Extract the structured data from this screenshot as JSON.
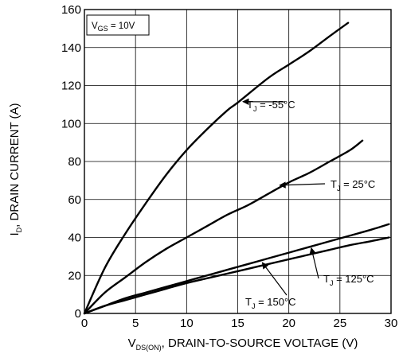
{
  "chart_data": {
    "type": "line",
    "title": "",
    "xlabel": {
      "pre": "V",
      "sub": "DS(ON)",
      "post": ", DRAIN-TO-SOURCE VOLTAGE (V)"
    },
    "ylabel": {
      "pre": "I",
      "sub": "D",
      "post": ", DRAIN CURRENT (A)"
    },
    "xlim": [
      0,
      30
    ],
    "ylim": [
      0,
      160
    ],
    "xticks": [
      0,
      5,
      10,
      15,
      20,
      25,
      30
    ],
    "yticks": [
      0,
      20,
      40,
      60,
      80,
      100,
      120,
      140,
      160
    ],
    "grid": true,
    "condition": {
      "pre": "V",
      "sub": "GS",
      "post": " = 10V"
    },
    "series": [
      {
        "label": {
          "pre": "T",
          "sub": "J",
          "post": " = -55°C"
        },
        "x": [
          0,
          2,
          4,
          6,
          8,
          10,
          12,
          14,
          15,
          18,
          20,
          22,
          24,
          25.8
        ],
        "y": [
          0,
          24,
          42,
          58,
          73,
          86,
          97,
          107,
          111,
          124,
          131,
          138,
          146,
          153
        ]
      },
      {
        "label": {
          "pre": "T",
          "sub": "J",
          "post": " = 25°C"
        },
        "x": [
          0,
          2,
          4,
          6,
          8,
          10,
          12,
          14,
          16,
          18,
          20,
          22,
          24,
          26,
          27.2
        ],
        "y": [
          0,
          11,
          19,
          27,
          34,
          40,
          46,
          52,
          57,
          63,
          69,
          74,
          80,
          86,
          91
        ]
      },
      {
        "label": {
          "pre": "T",
          "sub": "J",
          "post": " = 125°C"
        },
        "x": [
          0,
          2,
          4,
          6,
          8,
          10,
          12,
          14,
          16,
          18,
          20,
          22,
          24,
          26,
          28,
          29.8
        ],
        "y": [
          0,
          4,
          8,
          11,
          14,
          17,
          20,
          23,
          26,
          29,
          32,
          35,
          38,
          41,
          44,
          47
        ]
      },
      {
        "label": {
          "pre": "T",
          "sub": "J",
          "post": " = 150°C"
        },
        "x": [
          0,
          2,
          4,
          6,
          8,
          10,
          12,
          14,
          16,
          18,
          20,
          22,
          24,
          26,
          28,
          29.8
        ],
        "y": [
          0,
          4,
          7,
          10,
          13,
          16,
          18.5,
          21,
          23.5,
          26,
          28.5,
          31,
          33.5,
          36,
          38,
          40
        ]
      }
    ]
  }
}
